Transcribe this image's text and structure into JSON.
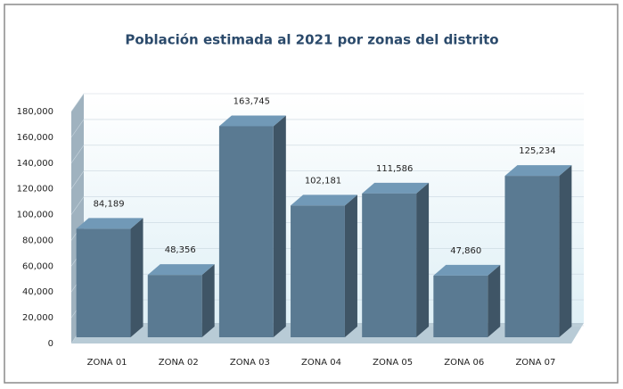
{
  "chart_data": {
    "type": "bar",
    "title": "Población estimada al 2021 por zonas del distrito",
    "categories": [
      "ZONA 01",
      "ZONA 02",
      "ZONA 03",
      "ZONA 04",
      "ZONA 05",
      "ZONA 06",
      "ZONA 07"
    ],
    "values": [
      84189,
      48356,
      163745,
      102181,
      111586,
      47860,
      125234
    ],
    "value_labels": [
      "84,189",
      "48,356",
      "163,745",
      "102,181",
      "111,586",
      "47,860",
      "125,234"
    ],
    "color": "#5a7a92",
    "ylim": [
      0,
      180000
    ],
    "yticks": [
      0,
      {
        "value": 20000,
        "label": "20,000"
      },
      {
        "value": 40000,
        "label": "40,000"
      },
      {
        "value": 60000,
        "label": "60,000"
      },
      {
        "value": 80000,
        "label": "80,000"
      },
      {
        "value": 100000,
        "label": "100,000"
      },
      {
        "value": 120000,
        "label": "120,000"
      },
      {
        "value": 140000,
        "label": "140,000"
      },
      {
        "value": 160000,
        "label": "160,000"
      },
      {
        "value": 180000,
        "label": "180,000"
      }
    ],
    "grid": true
  }
}
